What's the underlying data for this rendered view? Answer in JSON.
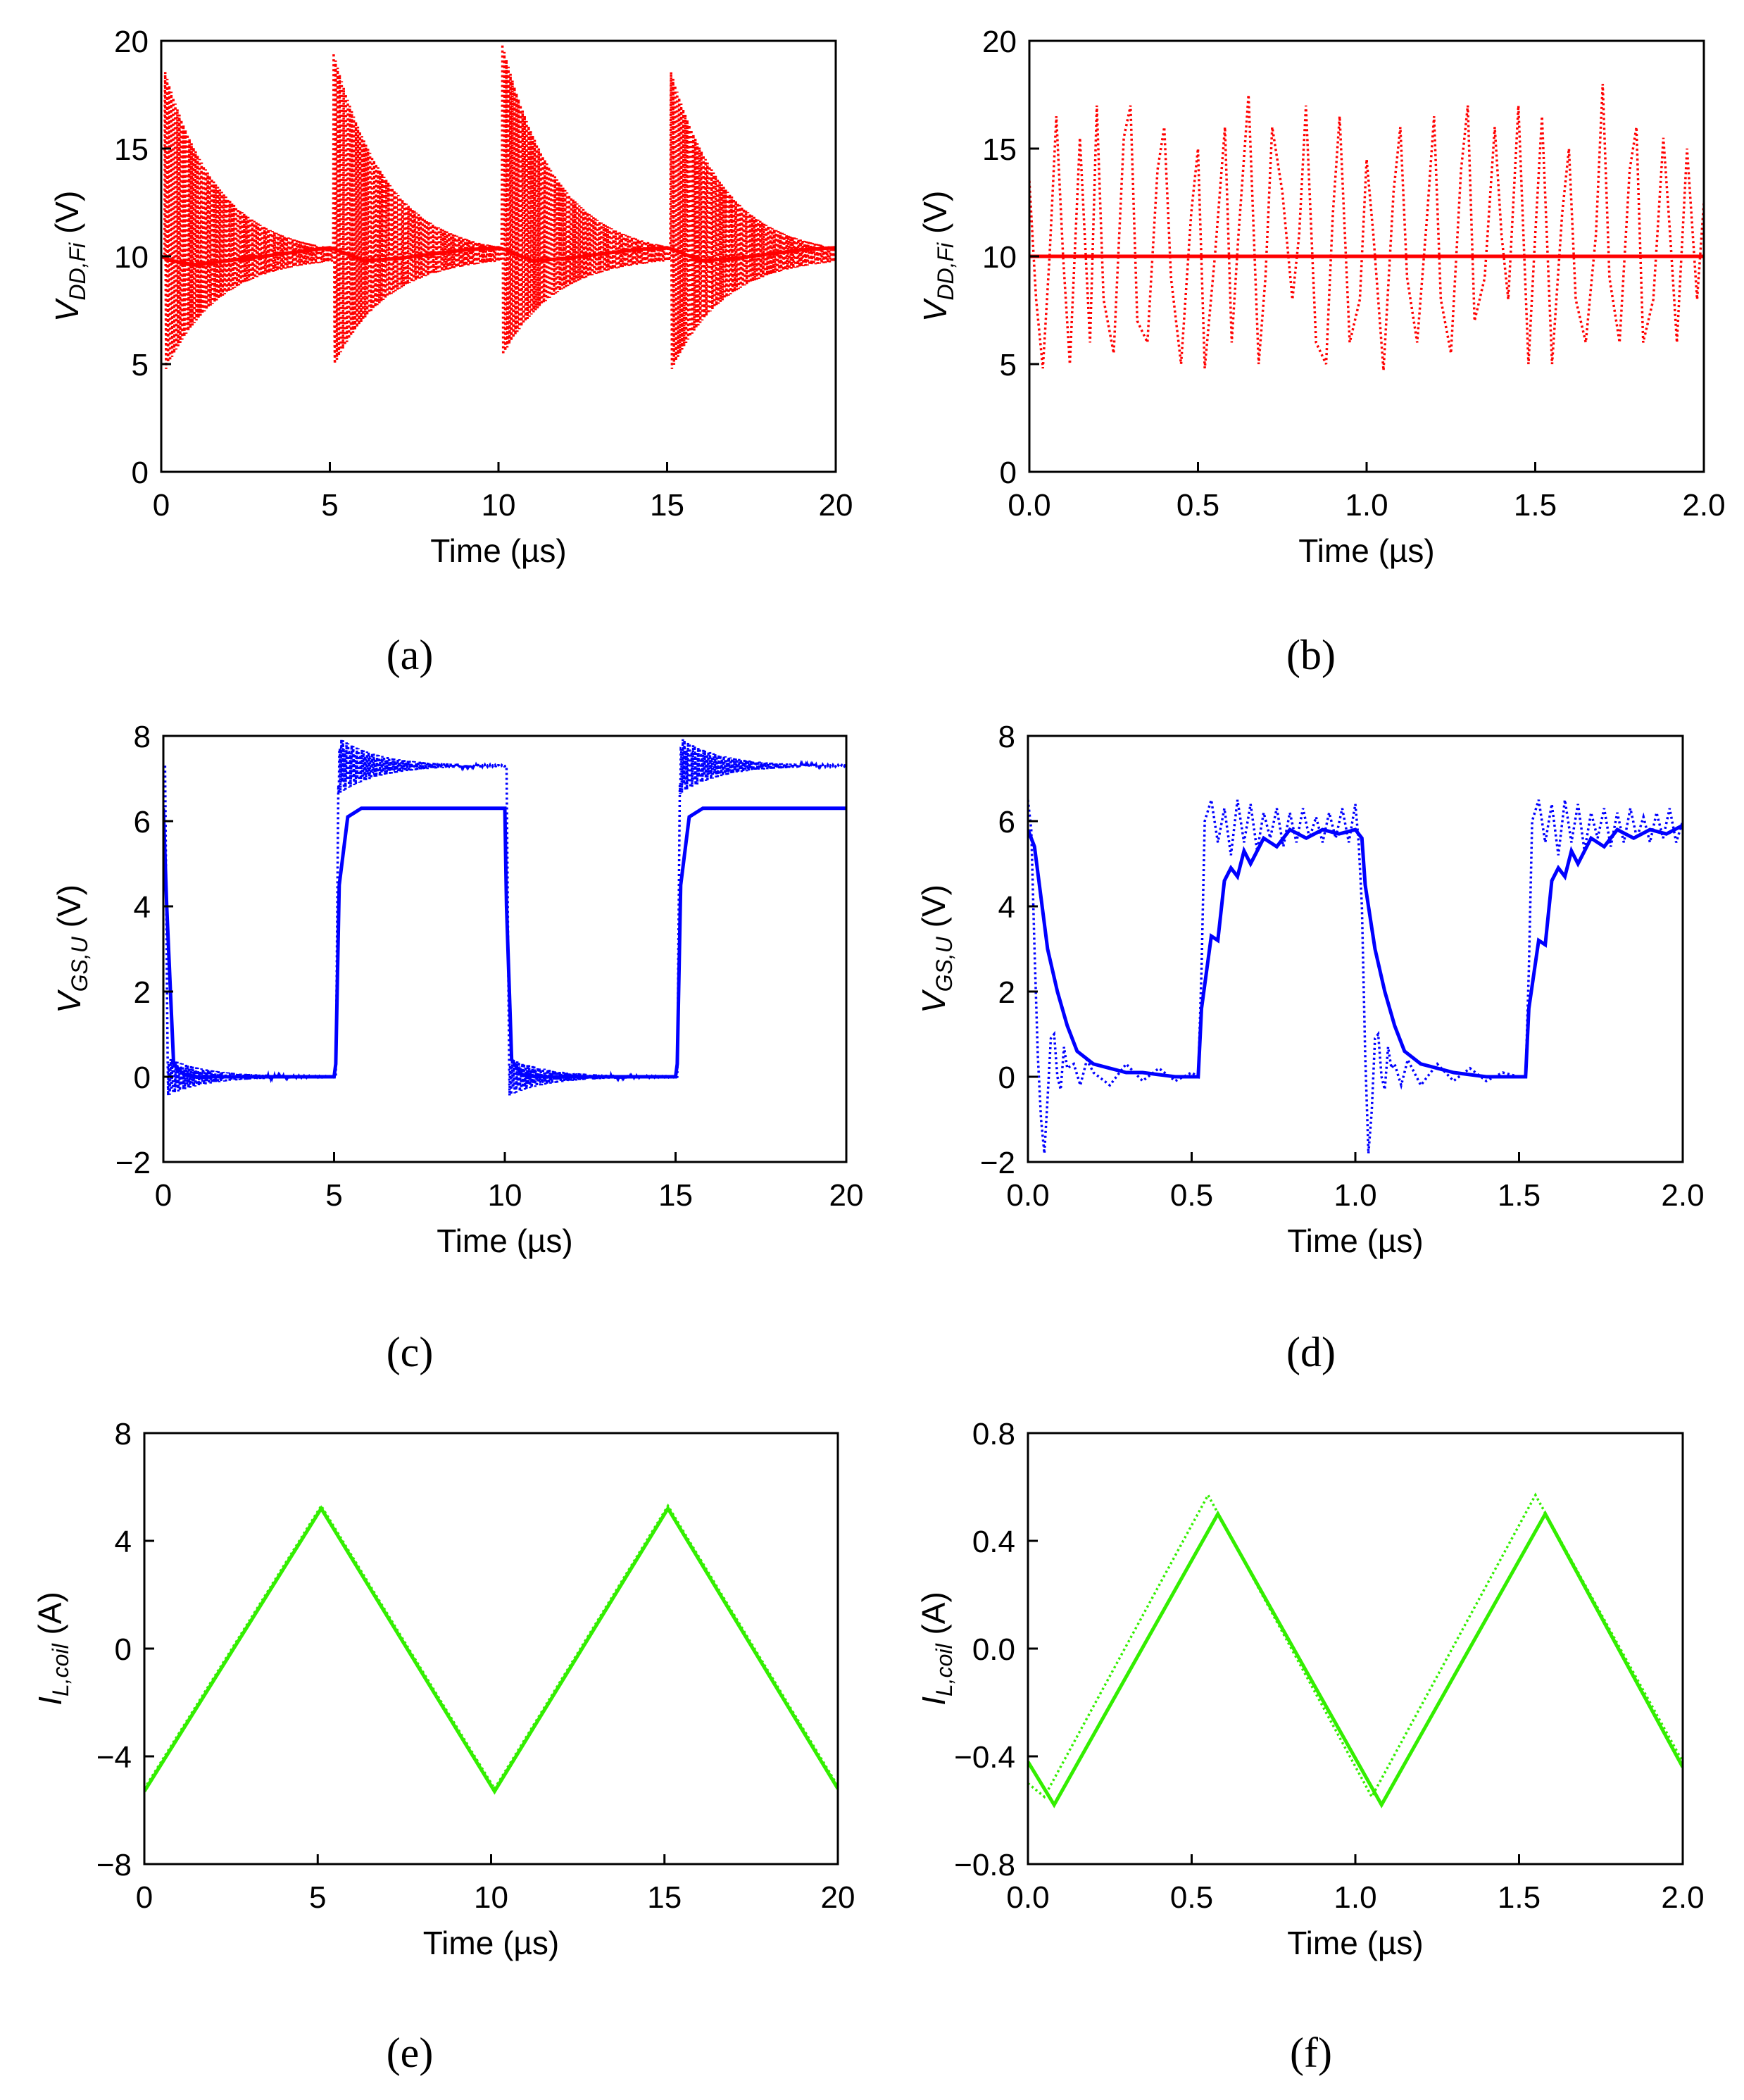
{
  "figure": {
    "panel_labels": [
      "(a)",
      "(b)",
      "(c)",
      "(d)",
      "(e)",
      "(f)"
    ]
  },
  "colors": {
    "red": "#ff0000",
    "blue": "#0000ff",
    "green": "#33ee00"
  },
  "chart_data": [
    {
      "id": "a",
      "type": "line",
      "color": "#ff0000",
      "title": "",
      "xlabel": "Time (µs)",
      "ylabel": {
        "main": "V",
        "sub": "DD,Fi",
        "unit": " (V)"
      },
      "xlim": [
        0,
        20
      ],
      "ylim": [
        0,
        20
      ],
      "xticks": [
        0,
        5,
        10,
        15,
        20
      ],
      "xtick_labels": [
        "0",
        "5",
        "10",
        "15",
        "20"
      ],
      "yticks": [
        0,
        5,
        10,
        15,
        20
      ],
      "ytick_labels": [
        "0",
        "5",
        "10",
        "15",
        "20"
      ],
      "series": [
        {
          "name": "solid",
          "style": "solid",
          "x": [
            0,
            0.3,
            1,
            2,
            3,
            4,
            5,
            5.2,
            6,
            7,
            8,
            9,
            10,
            10.2,
            11,
            12,
            13,
            14,
            15,
            15.2,
            16,
            17,
            18,
            19,
            20
          ],
          "y": [
            10,
            9.8,
            9.6,
            9.8,
            10.0,
            10.2,
            10.4,
            10.3,
            9.8,
            9.9,
            10.1,
            10.3,
            10.4,
            10.3,
            9.8,
            9.9,
            10.1,
            10.3,
            10.4,
            10.3,
            9.8,
            9.9,
            10.1,
            10.3,
            10.4
          ]
        },
        {
          "name": "dotted",
          "style": "dotted",
          "bursts": [
            0.1,
            5.1,
            10.1,
            15.1
          ],
          "center": 10,
          "peak_high": 20,
          "peak_low": 4.6,
          "decay_us": 1.6
        }
      ]
    },
    {
      "id": "b",
      "type": "line",
      "color": "#ff0000",
      "title": "",
      "xlabel": "Time (µs)",
      "ylabel": {
        "main": "V",
        "sub": "DD,Fi",
        "unit": " (V)"
      },
      "xlim": [
        0,
        2
      ],
      "ylim": [
        0,
        20
      ],
      "xticks": [
        0,
        0.5,
        1,
        1.5,
        2
      ],
      "xtick_labels": [
        "0.0",
        "0.5",
        "1.0",
        "1.5",
        "2.0"
      ],
      "yticks": [
        0,
        5,
        10,
        15,
        20
      ],
      "ytick_labels": [
        "0",
        "5",
        "10",
        "15",
        "20"
      ],
      "series": [
        {
          "name": "solid",
          "style": "solid",
          "x": [
            0,
            2
          ],
          "y": [
            10,
            10
          ]
        },
        {
          "name": "dotted",
          "style": "dotted",
          "x": [
            0.0,
            0.02,
            0.04,
            0.06,
            0.08,
            0.1,
            0.12,
            0.15,
            0.18,
            0.2,
            0.22,
            0.25,
            0.28,
            0.3,
            0.32,
            0.35,
            0.38,
            0.4,
            0.42,
            0.45,
            0.48,
            0.5,
            0.52,
            0.55,
            0.58,
            0.6,
            0.62,
            0.65,
            0.68,
            0.7,
            0.72,
            0.75,
            0.78,
            0.8,
            0.82,
            0.85,
            0.88,
            0.9,
            0.92,
            0.95,
            0.98,
            1.0,
            1.02,
            1.05,
            1.08,
            1.1,
            1.12,
            1.15,
            1.18,
            1.2,
            1.22,
            1.25,
            1.28,
            1.3,
            1.32,
            1.35,
            1.38,
            1.4,
            1.42,
            1.45,
            1.48,
            1.5,
            1.52,
            1.55,
            1.58,
            1.6,
            1.62,
            1.65,
            1.68,
            1.7,
            1.72,
            1.75,
            1.78,
            1.8,
            1.82,
            1.85,
            1.88,
            1.9,
            1.92,
            1.95,
            1.98,
            2.0
          ],
          "y": [
            13.5,
            8,
            4.8,
            10,
            16.5,
            10,
            5,
            15.5,
            6,
            17,
            8,
            5.5,
            15.5,
            17,
            7,
            6,
            14,
            16,
            9,
            5,
            12,
            15,
            4.8,
            10,
            16,
            6,
            11,
            17.5,
            5,
            9,
            16,
            13,
            8,
            11,
            17,
            6,
            5,
            12,
            16.5,
            6,
            8,
            14.5,
            11,
            4.7,
            13,
            16,
            9,
            6,
            12,
            16.5,
            8,
            5.5,
            14,
            17,
            7,
            9,
            16,
            11,
            8,
            17,
            5,
            11,
            16.5,
            5,
            12,
            15,
            8,
            6,
            11,
            18,
            9,
            6,
            14,
            16,
            6,
            8,
            15.5,
            11,
            6,
            15,
            8,
            12.5
          ]
        }
      ]
    },
    {
      "id": "c",
      "type": "line",
      "color": "#0000ff",
      "title": "",
      "xlabel": "Time (µs)",
      "ylabel": {
        "main": "V",
        "sub": "GS,U",
        "unit": " (V)"
      },
      "xlim": [
        0,
        20
      ],
      "ylim": [
        -2,
        8
      ],
      "xticks": [
        0,
        5,
        10,
        15,
        20
      ],
      "xtick_labels": [
        "0",
        "5",
        "10",
        "15",
        "20"
      ],
      "yticks": [
        -2,
        0,
        2,
        4,
        6,
        8
      ],
      "ytick_labels": [
        "−2",
        "0",
        "2",
        "4",
        "6",
        "8"
      ],
      "series": [
        {
          "name": "solid",
          "style": "solid",
          "x": [
            0,
            0.1,
            0.3,
            0.6,
            1,
            5,
            5.05,
            5.15,
            5.4,
            5.8,
            10,
            10.05,
            10.2,
            10.5,
            11,
            15,
            15.05,
            15.15,
            15.4,
            15.8,
            20
          ],
          "y": [
            6.3,
            4,
            0.3,
            0.05,
            0,
            0,
            0.3,
            4.5,
            6.1,
            6.3,
            6.3,
            4,
            0.4,
            0.05,
            0,
            0,
            0.3,
            4.5,
            6.1,
            6.3,
            6.3
          ]
        },
        {
          "name": "dotted",
          "style": "dotted",
          "high_segments": [
            [
              5.05,
              10
            ],
            [
              15.05,
              20
            ]
          ],
          "high_level": 7.3,
          "high_amp": 0.75,
          "low_segments": [
            [
              0.05,
              5
            ],
            [
              10.05,
              15
            ]
          ],
          "low_level": 0,
          "low_amp": 0.5,
          "decay_us": 1.2
        }
      ]
    },
    {
      "id": "d",
      "type": "line",
      "color": "#0000ff",
      "title": "",
      "xlabel": "Time (µs)",
      "ylabel": {
        "main": "V",
        "sub": "GS,U",
        "unit": " (V)"
      },
      "xlim": [
        0,
        2
      ],
      "ylim": [
        -2,
        8
      ],
      "xticks": [
        0,
        0.5,
        1,
        1.5,
        2
      ],
      "xtick_labels": [
        "0.0",
        "0.5",
        "1.0",
        "1.5",
        "2.0"
      ],
      "yticks": [
        -2,
        0,
        2,
        4,
        6,
        8
      ],
      "ytick_labels": [
        "−2",
        "0",
        "2",
        "4",
        "6",
        "8"
      ],
      "series": [
        {
          "name": "solid",
          "style": "solid",
          "x": [
            0.0,
            0.02,
            0.04,
            0.06,
            0.09,
            0.12,
            0.15,
            0.2,
            0.25,
            0.3,
            0.35,
            0.4,
            0.45,
            0.5,
            0.52,
            0.53,
            0.56,
            0.58,
            0.6,
            0.62,
            0.64,
            0.66,
            0.68,
            0.72,
            0.76,
            0.8,
            0.85,
            0.9,
            0.95,
            1.0,
            1.02,
            1.03,
            1.06,
            1.09,
            1.12,
            1.15,
            1.2,
            1.25,
            1.3,
            1.35,
            1.4,
            1.45,
            1.5,
            1.52,
            1.53,
            1.56,
            1.58,
            1.6,
            1.62,
            1.64,
            1.66,
            1.68,
            1.72,
            1.76,
            1.8,
            1.85,
            1.9,
            1.95,
            2.0
          ],
          "y": [
            5.8,
            5.4,
            4.2,
            3.0,
            2.0,
            1.2,
            0.6,
            0.3,
            0.2,
            0.1,
            0.1,
            0.05,
            0,
            0,
            0,
            1.6,
            3.3,
            3.2,
            4.6,
            4.9,
            4.7,
            5.3,
            5.0,
            5.6,
            5.4,
            5.8,
            5.6,
            5.8,
            5.7,
            5.8,
            5.6,
            4.5,
            3.0,
            2.0,
            1.2,
            0.6,
            0.3,
            0.2,
            0.1,
            0.05,
            0,
            0,
            0,
            0,
            1.6,
            3.2,
            3.1,
            4.6,
            4.9,
            4.7,
            5.3,
            5.0,
            5.6,
            5.4,
            5.8,
            5.6,
            5.8,
            5.7,
            5.9
          ]
        },
        {
          "name": "dotted",
          "style": "dotted",
          "x": [
            0.0,
            0.01,
            0.02,
            0.03,
            0.04,
            0.05,
            0.06,
            0.07,
            0.08,
            0.09,
            0.1,
            0.11,
            0.12,
            0.14,
            0.16,
            0.18,
            0.2,
            0.25,
            0.3,
            0.35,
            0.4,
            0.45,
            0.5,
            0.52,
            0.53,
            0.54,
            0.56,
            0.58,
            0.6,
            0.62,
            0.64,
            0.66,
            0.68,
            0.7,
            0.72,
            0.74,
            0.76,
            0.78,
            0.8,
            0.82,
            0.84,
            0.86,
            0.88,
            0.9,
            0.92,
            0.94,
            0.96,
            0.98,
            1.0,
            1.01,
            1.02,
            1.03,
            1.04,
            1.05,
            1.06,
            1.07,
            1.08,
            1.09,
            1.1,
            1.11,
            1.12,
            1.14,
            1.16,
            1.18,
            1.2,
            1.25,
            1.3,
            1.35,
            1.4,
            1.45,
            1.5,
            1.52,
            1.53,
            1.54,
            1.56,
            1.58,
            1.6,
            1.62,
            1.64,
            1.66,
            1.68,
            1.7,
            1.72,
            1.74,
            1.76,
            1.78,
            1.8,
            1.82,
            1.84,
            1.86,
            1.88,
            1.9,
            1.92,
            1.94,
            1.96,
            1.98,
            2.0
          ],
          "y": [
            6.5,
            5.8,
            3.0,
            0.5,
            -1.0,
            -1.8,
            -0.5,
            0.9,
            1.0,
            0.0,
            -0.3,
            0.7,
            0.2,
            0.3,
            -0.2,
            0.4,
            0.1,
            -0.2,
            0.3,
            -0.1,
            0.2,
            -0.1,
            0.1,
            0,
            2.5,
            6.0,
            6.5,
            5.5,
            6.3,
            5.2,
            6.5,
            5.5,
            6.4,
            5.3,
            6.2,
            5.6,
            6.3,
            5.4,
            6.2,
            5.5,
            6.3,
            5.6,
            6.1,
            5.5,
            6.2,
            5.6,
            6.3,
            5.5,
            6.4,
            5.5,
            4.0,
            0.5,
            -1.8,
            -0.8,
            0.9,
            1.0,
            0.0,
            -0.3,
            0.7,
            0.2,
            0.3,
            -0.2,
            0.4,
            0.1,
            -0.2,
            0.3,
            -0.1,
            0.2,
            -0.1,
            0.1,
            0,
            0,
            2.5,
            6.0,
            6.5,
            5.5,
            6.4,
            5.2,
            6.5,
            5.5,
            6.4,
            5.3,
            6.2,
            5.6,
            6.3,
            5.4,
            6.2,
            5.5,
            6.3,
            5.6,
            6.1,
            5.5,
            6.2,
            5.6,
            6.3,
            5.5,
            6.0
          ]
        }
      ]
    },
    {
      "id": "e",
      "type": "line",
      "color": "#33ee00",
      "title": "",
      "xlabel": "Time (µs)",
      "ylabel": {
        "main": "I",
        "sub": "L,coil",
        "unit": " (A)"
      },
      "xlim": [
        0,
        20
      ],
      "ylim": [
        -8,
        8
      ],
      "xticks": [
        0,
        5,
        10,
        15,
        20
      ],
      "xtick_labels": [
        "0",
        "5",
        "10",
        "15",
        "20"
      ],
      "yticks": [
        -8,
        -4,
        0,
        4,
        8
      ],
      "ytick_labels": [
        "−8",
        "−4",
        "0",
        "4",
        "8"
      ],
      "series": [
        {
          "name": "solid",
          "style": "solid",
          "x": [
            0,
            5.1,
            10.1,
            15.1,
            20
          ],
          "y": [
            -5.3,
            5.2,
            -5.3,
            5.2,
            -5.2
          ]
        },
        {
          "name": "dotted",
          "style": "dotted",
          "x": [
            0,
            5.1,
            10.1,
            15.1,
            20
          ],
          "y": [
            -5.2,
            5.3,
            -5.2,
            5.3,
            -5.1
          ]
        }
      ]
    },
    {
      "id": "f",
      "type": "line",
      "color": "#33ee00",
      "title": "",
      "xlabel": "Time (µs)",
      "ylabel": {
        "main": "I",
        "sub": "L,coil",
        "unit": " (A)"
      },
      "xlim": [
        0,
        2
      ],
      "ylim": [
        -0.8,
        0.8
      ],
      "xticks": [
        0,
        0.5,
        1,
        1.5,
        2
      ],
      "xtick_labels": [
        "0.0",
        "0.5",
        "1.0",
        "1.5",
        "2.0"
      ],
      "yticks": [
        -0.8,
        -0.4,
        0,
        0.4,
        0.8
      ],
      "ytick_labels": [
        "−0.8",
        "−0.4",
        "0.0",
        "0.4",
        "0.8"
      ],
      "series": [
        {
          "name": "solid",
          "style": "solid",
          "x": [
            0,
            0.08,
            0.58,
            1.08,
            1.58,
            2.0
          ],
          "y": [
            -0.42,
            -0.58,
            0.5,
            -0.58,
            0.5,
            -0.44
          ]
        },
        {
          "name": "dotted",
          "style": "dotted",
          "x": [
            0,
            0.05,
            0.55,
            1.05,
            1.55,
            2.0
          ],
          "y": [
            -0.5,
            -0.55,
            0.57,
            -0.55,
            0.57,
            -0.42
          ]
        }
      ]
    }
  ]
}
